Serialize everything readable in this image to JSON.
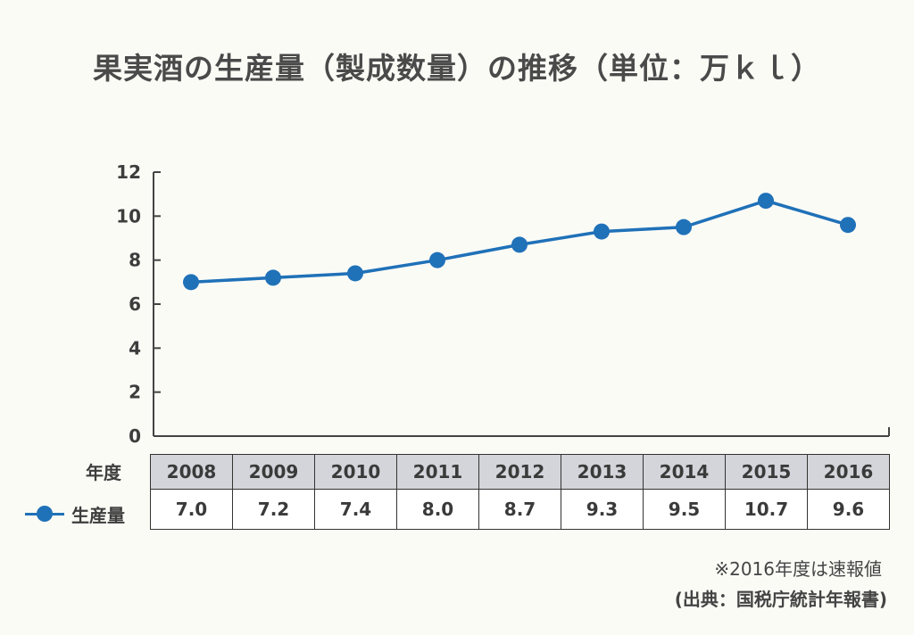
{
  "chart_data": {
    "type": "line",
    "title": "果実酒の生産量（製成数量）の推移（単位：万ｋｌ）",
    "categories": [
      "2008",
      "2009",
      "2010",
      "2011",
      "2012",
      "2013",
      "2014",
      "2015",
      "2016"
    ],
    "series": [
      {
        "name": "生産量",
        "values": [
          7.0,
          7.2,
          7.4,
          8.0,
          8.7,
          9.3,
          9.5,
          10.7,
          9.6
        ],
        "color": "#1f71b8"
      }
    ],
    "yticks": [
      0,
      2,
      4,
      6,
      8,
      10,
      12
    ],
    "ylim": [
      0,
      12
    ],
    "grid": false,
    "table": {
      "row_header": "年度",
      "value_labels": [
        "7.0",
        "7.2",
        "7.4",
        "8.0",
        "8.7",
        "9.3",
        "9.5",
        "10.7",
        "9.6"
      ]
    },
    "note": "※2016年度は速報値",
    "source": "(出典：国税庁統計年報書)"
  }
}
